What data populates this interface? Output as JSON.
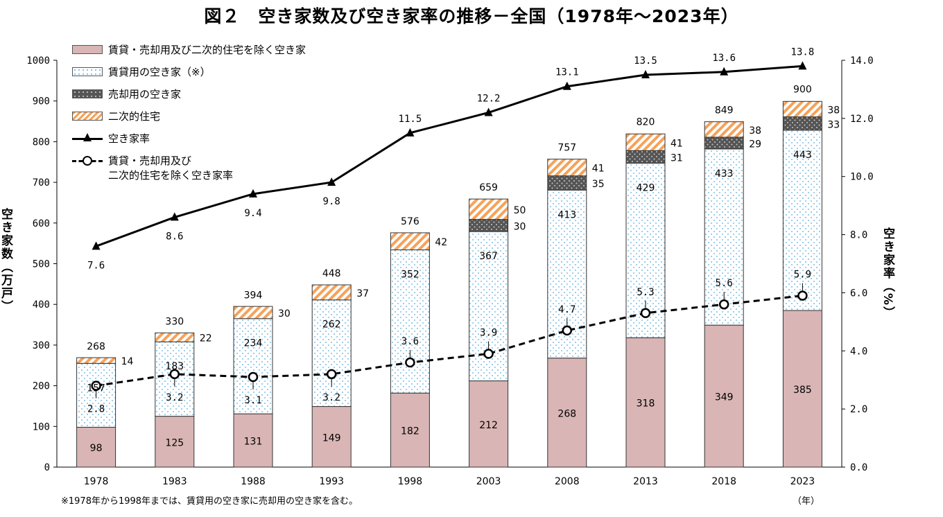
{
  "title": "図２　空き家数及び空き家率の推移－全国（1978年～2023年）",
  "note": "※1978年から1998年までは、賃貸用の空き家に売却用の空き家を含む。",
  "colors": {
    "ibi": "#d9b5b5",
    "rent_dot": "#7fbfe0",
    "sale": "#555555",
    "secondary": "#f5a25a",
    "line": "#000000"
  },
  "legend": {
    "ibi": "賃貸・売却用及び二次的住宅を除く空き家",
    "rent": "賃貸用の空き家（※）",
    "sale": "売却用の空き家",
    "secondary": "二次的住宅",
    "rate": "空き家率",
    "ibi_rate_line1": "賃貸・売却用及び",
    "ibi_rate_line2": "二次的住宅を除く空き家率"
  },
  "chart_data": {
    "type": "bar",
    "subtype": "stacked bar with line overlay",
    "title": "図２　空き家数及び空き家率の推移－全国（1978年～2023年）",
    "categories": [
      "1978",
      "1983",
      "1988",
      "1993",
      "1998",
      "2003",
      "2008",
      "2013",
      "2018",
      "2023"
    ],
    "xunit": "（年）",
    "ylabel": "空き家数（万戸）",
    "ylabel2": "空き家率（%）",
    "ylim": [
      0,
      1000
    ],
    "y2lim": [
      0,
      14
    ],
    "yticks": [
      0,
      100,
      200,
      300,
      400,
      500,
      600,
      700,
      800,
      900,
      1000
    ],
    "y2ticks": [
      "0.0",
      "2.0",
      "4.0",
      "6.0",
      "8.0",
      "10.0",
      "12.0",
      "14.0"
    ],
    "series": [
      {
        "name": "賃貸・売却用及び二次的住宅を除く空き家",
        "kind": "bar",
        "values": [
          98,
          125,
          131,
          149,
          182,
          212,
          268,
          318,
          349,
          385
        ]
      },
      {
        "name": "賃貸用の空き家（※）",
        "kind": "bar",
        "values": [
          157,
          183,
          234,
          262,
          352,
          367,
          413,
          429,
          433,
          443
        ]
      },
      {
        "name": "売却用の空き家",
        "kind": "bar",
        "values": [
          null,
          null,
          null,
          null,
          null,
          30,
          35,
          31,
          29,
          33
        ]
      },
      {
        "name": "二次的住宅",
        "kind": "bar",
        "values": [
          14,
          22,
          30,
          37,
          42,
          50,
          41,
          41,
          38,
          38
        ]
      },
      {
        "name": "空き家率",
        "kind": "line",
        "axis": "right",
        "values": [
          7.6,
          8.6,
          9.4,
          9.8,
          11.5,
          12.2,
          13.1,
          13.5,
          13.6,
          13.8
        ]
      },
      {
        "name": "賃貸・売却用及び二次的住宅を除く空き家率",
        "kind": "line-dashed",
        "axis": "right",
        "values": [
          2.8,
          3.2,
          3.1,
          3.2,
          3.6,
          3.9,
          4.7,
          5.3,
          5.6,
          5.9
        ]
      }
    ],
    "totals": [
      268,
      330,
      394,
      448,
      576,
      659,
      757,
      820,
      849,
      900
    ],
    "rate_labels": [
      "7.6",
      "8.6",
      "9.4",
      "9.8",
      "11.5",
      "12.2",
      "13.1",
      "13.5",
      "13.6",
      "13.8"
    ],
    "ibi_rate_labels": [
      "2.8",
      "3.2",
      "3.1",
      "3.2",
      "3.6",
      "3.9",
      "4.7",
      "5.3",
      "5.6",
      "5.9"
    ],
    "legend_position": "top-left",
    "grid": false
  }
}
